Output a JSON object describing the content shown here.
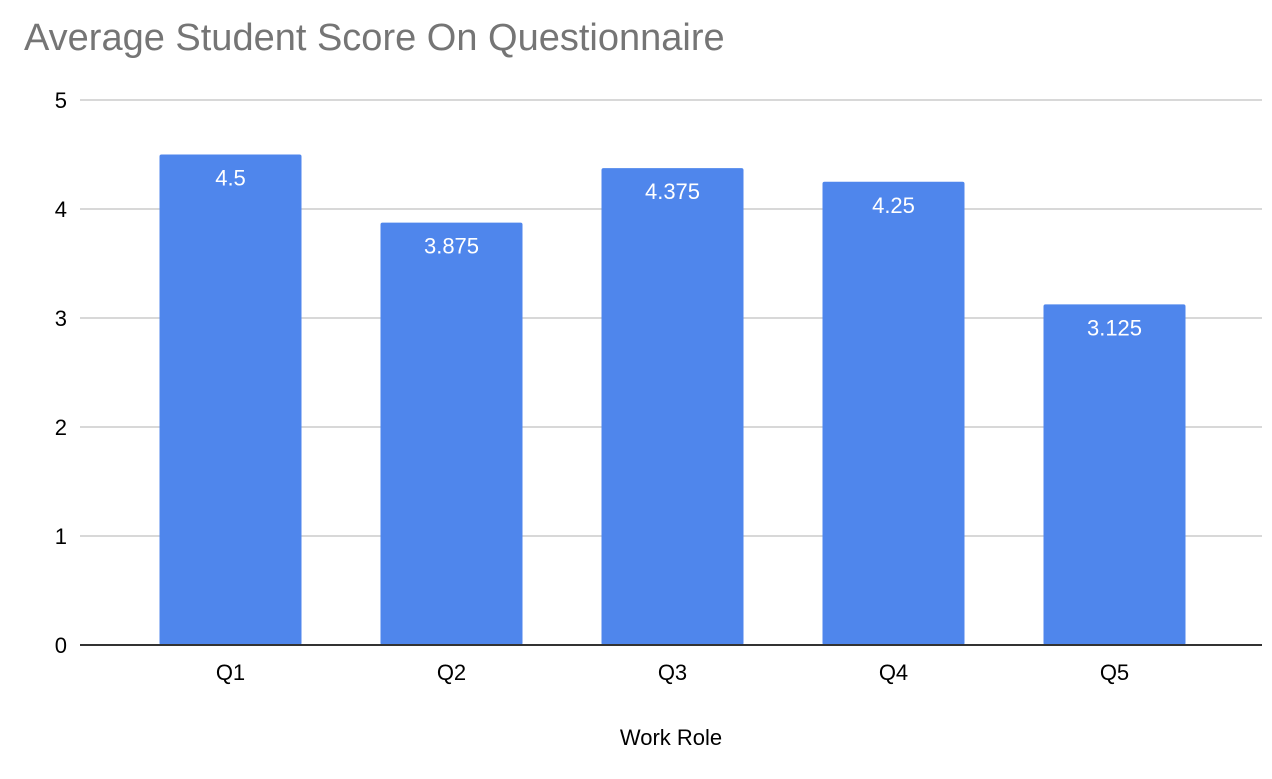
{
  "chart_data": {
    "type": "bar",
    "title": "Average Student Score On Questionnaire",
    "xlabel": "Work Role",
    "ylabel": "",
    "categories": [
      "Q1",
      "Q2",
      "Q3",
      "Q4",
      "Q5"
    ],
    "values": [
      4.5,
      3.875,
      4.375,
      4.25,
      3.125
    ],
    "data_labels": [
      "4.5",
      "3.875",
      "4.375",
      "4.25",
      "3.125"
    ],
    "ylim": [
      0,
      5
    ],
    "yticks": [
      0,
      1,
      2,
      3,
      4,
      5
    ],
    "ytick_labels": [
      "0",
      "1",
      "2",
      "3",
      "4",
      "5"
    ],
    "grid": true,
    "legend": "none",
    "colors": {
      "bar": "#4f86ec",
      "title": "#757575",
      "grid": "#cccccc",
      "baseline": "#333333"
    }
  }
}
